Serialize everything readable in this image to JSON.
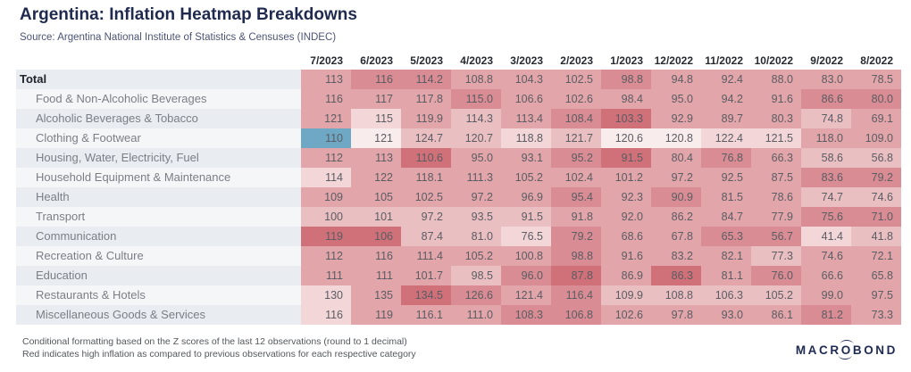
{
  "title": "Argentina: Inflation Heatmap Breakdowns",
  "source": "Source: Argentina National Institute of Statistics & Censuses (INDEC)",
  "footnotes": [
    "Conditional formatting based on the Z scores of the last 12 observations (round to 1 decimal)",
    "Red indicates high inflation as compared to previous observations for each respective category"
  ],
  "logo": {
    "pre": "MACR",
    "o": "O",
    "post": "BOND"
  },
  "colors": {
    "title": "#1f2a4e",
    "source_text": "#4b5474",
    "header_text": "#26292f",
    "label_text": "#7b7e85",
    "total_label_text": "#21242c",
    "cell_text": "#5a5d63",
    "stripe_odd": "#e9edf2",
    "stripe_even": "#f5f6f8",
    "footnote_text": "#54575d",
    "logo_navy": "#1e2a52",
    "heat_blue": "#6fa8c4",
    "heat_deep_red": "#d07078"
  },
  "chart_data": {
    "type": "heatmap",
    "title": "Argentina: Inflation Heatmap Breakdowns",
    "columns": [
      "7/2023",
      "6/2023",
      "5/2023",
      "4/2023",
      "3/2023",
      "2/2023",
      "1/2023",
      "12/2022",
      "11/2022",
      "10/2022",
      "9/2022",
      "8/2022"
    ],
    "palette": [
      "#6fa8c4",
      "#f8ecec",
      "#f2d6d8",
      "#eabfc2",
      "#e2a5aa",
      "#d98c93",
      "#d07078"
    ],
    "palette_note": "shade index 0 = blue (low z-score / deflationary vs history); 1-6 = increasingly red (high inflation vs previous observations)",
    "rows": [
      {
        "label": "Total",
        "bold": true,
        "values": [
          "113",
          "116",
          "114.2",
          "108.8",
          "104.3",
          "102.5",
          "98.8",
          "94.8",
          "92.4",
          "88.0",
          "83.0",
          "78.5"
        ],
        "shades": [
          4,
          5,
          5,
          4,
          4,
          4,
          5,
          4,
          4,
          4,
          4,
          4
        ]
      },
      {
        "label": "Food & Non-Alcoholic Beverages",
        "bold": false,
        "values": [
          "116",
          "117",
          "117.8",
          "115.0",
          "106.6",
          "102.6",
          "98.4",
          "95.0",
          "94.2",
          "91.6",
          "86.6",
          "80.0"
        ],
        "shades": [
          4,
          4,
          4,
          5,
          4,
          4,
          4,
          4,
          4,
          4,
          5,
          5
        ]
      },
      {
        "label": "Alcoholic Beverages & Tobacco",
        "bold": false,
        "values": [
          "121",
          "115",
          "119.9",
          "114.3",
          "113.4",
          "108.4",
          "103.3",
          "92.9",
          "89.7",
          "80.3",
          "74.8",
          "69.1"
        ],
        "shades": [
          4,
          2,
          4,
          3,
          4,
          5,
          6,
          4,
          4,
          4,
          3,
          4
        ]
      },
      {
        "label": "Clothing & Footwear",
        "bold": false,
        "values": [
          "110",
          "121",
          "124.7",
          "120.7",
          "118.8",
          "121.7",
          "120.6",
          "120.8",
          "122.4",
          "121.5",
          "118.0",
          "109.0"
        ],
        "shades": [
          0,
          1,
          3,
          3,
          2,
          3,
          1,
          1,
          2,
          2,
          4,
          4
        ]
      },
      {
        "label": "Housing, Water, Electricity, Fuel",
        "bold": false,
        "values": [
          "112",
          "113",
          "110.6",
          "95.0",
          "93.1",
          "95.2",
          "91.5",
          "80.4",
          "76.8",
          "66.3",
          "58.6",
          "56.8"
        ],
        "shades": [
          4,
          4,
          6,
          4,
          4,
          5,
          6,
          4,
          5,
          4,
          3,
          3
        ]
      },
      {
        "label": "Household Equipment & Maintenance",
        "bold": false,
        "values": [
          "114",
          "122",
          "118.1",
          "111.3",
          "105.2",
          "102.4",
          "101.2",
          "97.2",
          "92.5",
          "87.5",
          "83.6",
          "79.2"
        ],
        "shades": [
          2,
          4,
          4,
          4,
          4,
          4,
          4,
          4,
          4,
          4,
          5,
          5
        ]
      },
      {
        "label": "Health",
        "bold": false,
        "values": [
          "109",
          "105",
          "102.5",
          "97.2",
          "96.9",
          "95.4",
          "92.3",
          "90.9",
          "81.5",
          "78.6",
          "74.7",
          "74.6"
        ],
        "shades": [
          4,
          4,
          4,
          4,
          4,
          5,
          4,
          5,
          4,
          4,
          3,
          3
        ]
      },
      {
        "label": "Transport",
        "bold": false,
        "values": [
          "100",
          "101",
          "97.2",
          "93.5",
          "91.5",
          "91.8",
          "92.0",
          "86.2",
          "84.7",
          "77.9",
          "75.6",
          "71.0"
        ],
        "shades": [
          3,
          3,
          3,
          3,
          3,
          4,
          4,
          4,
          4,
          4,
          5,
          5
        ]
      },
      {
        "label": "Communication",
        "bold": false,
        "values": [
          "119",
          "106",
          "87.4",
          "81.0",
          "76.5",
          "79.2",
          "68.6",
          "67.8",
          "65.3",
          "56.7",
          "41.4",
          "41.8"
        ],
        "shades": [
          6,
          6,
          3,
          3,
          2,
          5,
          4,
          4,
          5,
          5,
          2,
          3
        ]
      },
      {
        "label": "Recreation & Culture",
        "bold": false,
        "values": [
          "112",
          "116",
          "111.4",
          "105.2",
          "100.8",
          "98.8",
          "91.6",
          "83.2",
          "82.1",
          "77.3",
          "74.6",
          "72.1"
        ],
        "shades": [
          4,
          4,
          4,
          4,
          4,
          5,
          4,
          4,
          4,
          3,
          4,
          4
        ]
      },
      {
        "label": "Education",
        "bold": false,
        "values": [
          "111",
          "111",
          "101.7",
          "98.5",
          "96.0",
          "87.8",
          "86.9",
          "86.3",
          "81.1",
          "76.0",
          "66.6",
          "65.8"
        ],
        "shades": [
          4,
          4,
          4,
          3,
          5,
          6,
          4,
          6,
          4,
          5,
          4,
          4
        ]
      },
      {
        "label": "Restaurants & Hotels",
        "bold": false,
        "values": [
          "130",
          "135",
          "134.5",
          "126.6",
          "121.4",
          "116.4",
          "109.9",
          "108.8",
          "106.3",
          "105.2",
          "99.0",
          "97.5"
        ],
        "shades": [
          2,
          4,
          6,
          5,
          4,
          5,
          3,
          3,
          3,
          3,
          4,
          4
        ]
      },
      {
        "label": "Miscellaneous Goods & Services",
        "bold": false,
        "values": [
          "116",
          "119",
          "116.1",
          "111.0",
          "108.3",
          "106.8",
          "102.6",
          "97.8",
          "93.0",
          "86.1",
          "81.2",
          "73.3"
        ],
        "shades": [
          2,
          4,
          4,
          4,
          5,
          5,
          4,
          4,
          4,
          4,
          5,
          4
        ]
      }
    ]
  }
}
